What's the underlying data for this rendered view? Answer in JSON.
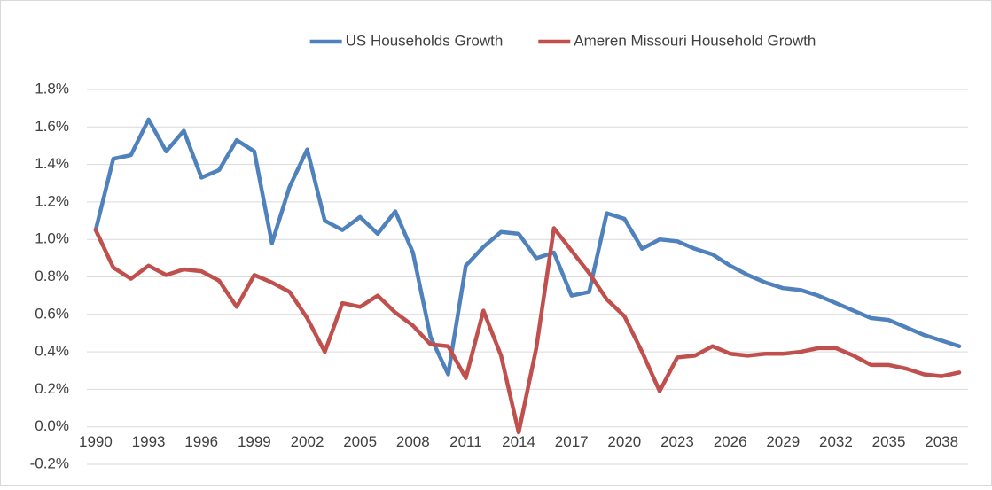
{
  "chart_data": {
    "type": "line",
    "categories": [
      "1990",
      null,
      null,
      "1993",
      null,
      null,
      "1996",
      null,
      null,
      "1999",
      null,
      null,
      "2002",
      null,
      null,
      "2005",
      null,
      null,
      "2008",
      null,
      null,
      "2011",
      null,
      null,
      "2014",
      null,
      null,
      "2017",
      null,
      null,
      "2020",
      null,
      null,
      "2023",
      null,
      null,
      "2026",
      null,
      null,
      "2029",
      null,
      null,
      "2032",
      null,
      null,
      "2035",
      null,
      null,
      "2038",
      null
    ],
    "series": [
      {
        "name": "US Households Growth",
        "color": "#4f81bd",
        "values": [
          1.05,
          1.43,
          1.45,
          1.64,
          1.47,
          1.58,
          1.33,
          1.37,
          1.53,
          1.47,
          0.98,
          1.28,
          1.48,
          1.1,
          1.05,
          1.12,
          1.03,
          1.15,
          0.93,
          0.48,
          0.28,
          0.86,
          0.96,
          1.04,
          1.03,
          0.9,
          0.93,
          0.7,
          0.72,
          1.14,
          1.11,
          0.95,
          1.0,
          0.99,
          0.95,
          0.92,
          0.86,
          0.81,
          0.77,
          0.74,
          0.73,
          0.7,
          0.66,
          0.62,
          0.58,
          0.57,
          0.53,
          0.49,
          0.46,
          0.43
        ]
      },
      {
        "name": "Ameren Missouri Household Growth",
        "color": "#c0504d",
        "values": [
          1.05,
          0.85,
          0.79,
          0.86,
          0.81,
          0.84,
          0.83,
          0.78,
          0.64,
          0.81,
          0.77,
          0.72,
          0.58,
          0.4,
          0.66,
          0.64,
          0.7,
          0.61,
          0.54,
          0.44,
          0.43,
          0.26,
          0.62,
          0.38,
          -0.03,
          0.42,
          1.06,
          0.94,
          0.82,
          0.68,
          0.59,
          0.4,
          0.19,
          0.37,
          0.38,
          0.43,
          0.39,
          0.38,
          0.39,
          0.39,
          0.4,
          0.42,
          0.42,
          0.38,
          0.33,
          0.33,
          0.31,
          0.28,
          0.27,
          0.29
        ]
      }
    ],
    "ylim": [
      -0.2,
      1.8
    ],
    "yticks": [
      {
        "value": -0.2,
        "label": "-0.2%"
      },
      {
        "value": 0,
        "label": "0.0%"
      },
      {
        "value": 0.2,
        "label": "0.2%"
      },
      {
        "value": 0.4,
        "label": "0.4%"
      },
      {
        "value": 0.6,
        "label": "0.6%"
      },
      {
        "value": 0.8,
        "label": "0.8%"
      },
      {
        "value": 1.0,
        "label": "1.0%"
      },
      {
        "value": 1.2,
        "label": "1.2%"
      },
      {
        "value": 1.4,
        "label": "1.4%"
      },
      {
        "value": 1.6,
        "label": "1.6%"
      },
      {
        "value": 1.8,
        "label": "1.8%"
      }
    ],
    "grid": true,
    "legend": "top"
  }
}
